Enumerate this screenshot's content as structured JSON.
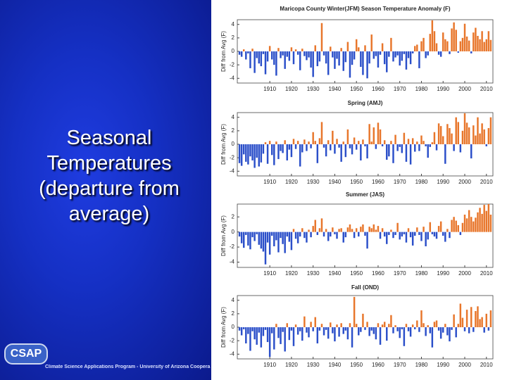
{
  "slide": {
    "title_lines": [
      "Seasonal",
      "Temperatures",
      "(departure from",
      "average)"
    ],
    "logo": "CSAP",
    "footer": "Climate Science Applications Program - University of Arizona Coopera"
  },
  "chart_data": [
    {
      "type": "bar",
      "title": "Maricopa County Winter(JFM) Season Temperature Anomaly (F)",
      "ylabel": "Diff from Avg (F)",
      "color_positive": "#e8762b",
      "color_negative": "#2b4fc9",
      "xlim": [
        1895,
        2013
      ],
      "xticks": [
        1910,
        1920,
        1930,
        1940,
        1950,
        1960,
        1970,
        1980,
        1990,
        2000,
        2010
      ],
      "ylim": [
        -4.7,
        4.7
      ],
      "yticks": [
        -4,
        -2,
        0,
        2,
        4
      ],
      "x": [
        1896,
        1897,
        1898,
        1899,
        1900,
        1901,
        1902,
        1903,
        1904,
        1905,
        1906,
        1907,
        1908,
        1909,
        1910,
        1911,
        1912,
        1913,
        1914,
        1915,
        1916,
        1917,
        1918,
        1919,
        1920,
        1921,
        1922,
        1923,
        1924,
        1925,
        1926,
        1927,
        1928,
        1929,
        1930,
        1931,
        1932,
        1933,
        1934,
        1935,
        1936,
        1937,
        1938,
        1939,
        1940,
        1941,
        1942,
        1943,
        1944,
        1945,
        1946,
        1947,
        1948,
        1949,
        1950,
        1951,
        1952,
        1953,
        1954,
        1955,
        1956,
        1957,
        1958,
        1959,
        1960,
        1961,
        1962,
        1963,
        1964,
        1965,
        1966,
        1967,
        1968,
        1969,
        1970,
        1971,
        1972,
        1973,
        1974,
        1975,
        1976,
        1977,
        1978,
        1979,
        1980,
        1981,
        1982,
        1983,
        1984,
        1985,
        1986,
        1987,
        1988,
        1989,
        1990,
        1991,
        1992,
        1993,
        1994,
        1995,
        1996,
        1997,
        1998,
        1999,
        2000,
        2001,
        2002,
        2003,
        2004,
        2005,
        2006,
        2007,
        2008,
        2009,
        2010,
        2011,
        2012
      ],
      "values": [
        -0.5,
        -0.8,
        0.3,
        -1.2,
        -0.3,
        -2.5,
        0.4,
        -3.2,
        -1.0,
        -1.8,
        -2.2,
        -0.4,
        -3.4,
        -1.5,
        0.8,
        -1.2,
        -2.0,
        -3.6,
        0.5,
        -1.0,
        -0.6,
        -2.6,
        -0.8,
        -1.4,
        0.6,
        -1.9,
        0.3,
        -0.5,
        -2.8,
        0.4,
        -0.7,
        -1.3,
        -0.9,
        -2.4,
        -3.8,
        0.9,
        -2.2,
        -1.5,
        4.2,
        -0.6,
        -1.8,
        -3.5,
        0.7,
        -0.9,
        -2.6,
        -1.1,
        -2.1,
        0.5,
        -2.9,
        -1.6,
        1.4,
        -3.9,
        -2.0,
        -1.2,
        1.8,
        0.6,
        -2.3,
        -3.5,
        0.9,
        -4.0,
        -1.8,
        2.5,
        -1.1,
        -0.7,
        -2.4,
        -0.5,
        1.2,
        -1.9,
        -3.1,
        -0.8,
        2.0,
        -1.5,
        -0.9,
        -0.6,
        -2.1,
        -1.4,
        -0.4,
        -2.7,
        -1.0,
        -1.9,
        -0.3,
        0.8,
        1.0,
        -2.5,
        1.5,
        2.0,
        -1.0,
        -0.6,
        2.6,
        4.6,
        3.0,
        1.2,
        -0.5,
        -0.8,
        2.8,
        1.8,
        1.5,
        -0.4,
        3.4,
        4.3,
        3.2,
        -0.2,
        1.5,
        2.0,
        4.1,
        2.2,
        1.6,
        -0.3,
        2.8,
        3.5,
        2.3,
        1.8,
        3.0,
        1.4,
        1.8,
        3.0,
        1.7
      ]
    },
    {
      "type": "bar",
      "title": "Spring (AMJ)",
      "ylabel": "Diff from Avg (F)",
      "color_positive": "#e8762b",
      "color_negative": "#2b4fc9",
      "xlim": [
        1895,
        2013
      ],
      "xticks": [
        1910,
        1920,
        1930,
        1940,
        1950,
        1960,
        1970,
        1980,
        1990,
        2000,
        2010
      ],
      "ylim": [
        -4.7,
        4.7
      ],
      "yticks": [
        -4,
        -2,
        0,
        2,
        4
      ],
      "x": [
        1896,
        1897,
        1898,
        1899,
        1900,
        1901,
        1902,
        1903,
        1904,
        1905,
        1906,
        1907,
        1908,
        1909,
        1910,
        1911,
        1912,
        1913,
        1914,
        1915,
        1916,
        1917,
        1918,
        1919,
        1920,
        1921,
        1922,
        1923,
        1924,
        1925,
        1926,
        1927,
        1928,
        1929,
        1930,
        1931,
        1932,
        1933,
        1934,
        1935,
        1936,
        1937,
        1938,
        1939,
        1940,
        1941,
        1942,
        1943,
        1944,
        1945,
        1946,
        1947,
        1948,
        1949,
        1950,
        1951,
        1952,
        1953,
        1954,
        1955,
        1956,
        1957,
        1958,
        1959,
        1960,
        1961,
        1962,
        1963,
        1964,
        1965,
        1966,
        1967,
        1968,
        1969,
        1970,
        1971,
        1972,
        1973,
        1974,
        1975,
        1976,
        1977,
        1978,
        1979,
        1980,
        1981,
        1982,
        1983,
        1984,
        1985,
        1986,
        1987,
        1988,
        1989,
        1990,
        1991,
        1992,
        1993,
        1994,
        1995,
        1996,
        1997,
        1998,
        1999,
        2000,
        2001,
        2002,
        2003,
        2004,
        2005,
        2006,
        2007,
        2008,
        2009,
        2010,
        2011,
        2012
      ],
      "values": [
        -2.8,
        -3.2,
        -1.5,
        -2.6,
        -3.0,
        -1.8,
        -2.4,
        -3.5,
        -2.0,
        -3.3,
        -2.7,
        -1.4,
        0.3,
        -2.9,
        0.5,
        -1.6,
        -3.1,
        0.4,
        -2.2,
        -1.0,
        -1.3,
        0.6,
        -2.4,
        -0.8,
        -1.9,
        0.8,
        -0.7,
        0.5,
        -3.3,
        -1.2,
        0.7,
        -1.0,
        0.4,
        -0.6,
        1.8,
        0.5,
        -2.8,
        0.9,
        3.3,
        -0.5,
        -1.8,
        0.6,
        -0.9,
        2.0,
        -1.4,
        0.8,
        -0.5,
        -2.6,
        0.4,
        -1.9,
        2.2,
        -0.6,
        -1.5,
        1.0,
        -0.8,
        0.5,
        -2.4,
        0.7,
        -0.3,
        -2.1,
        3.0,
        0.4,
        2.5,
        -0.7,
        3.2,
        2.2,
        -0.3,
        0.6,
        -2.3,
        -1.8,
        0.5,
        -2.8,
        1.4,
        -1.0,
        -0.4,
        -1.3,
        1.7,
        -2.6,
        0.8,
        -3.0,
        0.9,
        -1.1,
        0.4,
        -1.0,
        1.3,
        0.5,
        -0.3,
        -2.0,
        -0.4,
        0.3,
        1.8,
        -0.9,
        3.1,
        2.7,
        1.2,
        -2.9,
        3.0,
        2.4,
        1.6,
        -1.0,
        4.0,
        3.3,
        -1.2,
        2.0,
        4.6,
        3.2,
        2.5,
        -2.1,
        2.8,
        1.3,
        4.0,
        1.6,
        3.1,
        2.2,
        -0.3,
        2.4,
        4.0
      ]
    },
    {
      "type": "bar",
      "title": "Summer (JAS)",
      "ylabel": "Diff from Avg (F)",
      "color_positive": "#e8762b",
      "color_negative": "#2b4fc9",
      "xlim": [
        1895,
        2013
      ],
      "xticks": [
        1910,
        1920,
        1930,
        1940,
        1950,
        1960,
        1970,
        1980,
        1990,
        2000,
        2010
      ],
      "ylim": [
        -4.7,
        3.7
      ],
      "yticks": [
        -4,
        -2,
        0,
        2
      ],
      "x": [
        1896,
        1897,
        1898,
        1899,
        1900,
        1901,
        1902,
        1903,
        1904,
        1905,
        1906,
        1907,
        1908,
        1909,
        1910,
        1911,
        1912,
        1913,
        1914,
        1915,
        1916,
        1917,
        1918,
        1919,
        1920,
        1921,
        1922,
        1923,
        1924,
        1925,
        1926,
        1927,
        1928,
        1929,
        1930,
        1931,
        1932,
        1933,
        1934,
        1935,
        1936,
        1937,
        1938,
        1939,
        1940,
        1941,
        1942,
        1943,
        1944,
        1945,
        1946,
        1947,
        1948,
        1949,
        1950,
        1951,
        1952,
        1953,
        1954,
        1955,
        1956,
        1957,
        1958,
        1959,
        1960,
        1961,
        1962,
        1963,
        1964,
        1965,
        1966,
        1967,
        1968,
        1969,
        1970,
        1971,
        1972,
        1973,
        1974,
        1975,
        1976,
        1977,
        1978,
        1979,
        1980,
        1981,
        1982,
        1983,
        1984,
        1985,
        1986,
        1987,
        1988,
        1989,
        1990,
        1991,
        1992,
        1993,
        1994,
        1995,
        1996,
        1997,
        1998,
        1999,
        2000,
        2001,
        2002,
        2003,
        2004,
        2005,
        2006,
        2007,
        2008,
        2009,
        2010,
        2011,
        2012
      ],
      "values": [
        -0.6,
        -1.5,
        -2.1,
        -0.4,
        -1.8,
        -2.3,
        -0.7,
        -1.2,
        -0.3,
        -1.7,
        -2.2,
        -2.6,
        -4.3,
        -1.4,
        -3.0,
        -0.5,
        -1.9,
        -1.1,
        -2.7,
        -0.8,
        -1.6,
        -2.8,
        -0.6,
        -1.3,
        -2.4,
        0.4,
        -0.9,
        -1.5,
        -0.6,
        0.5,
        -0.8,
        -1.4,
        0.3,
        -0.7,
        0.8,
        1.6,
        -0.4,
        0.5,
        1.8,
        -0.6,
        0.4,
        -1.2,
        -0.6,
        0.6,
        -0.3,
        -0.9,
        0.4,
        0.5,
        -1.4,
        -0.7,
        0.6,
        1.0,
        0.4,
        -0.8,
        0.5,
        -0.6,
        0.7,
        1.0,
        -0.5,
        -2.2,
        0.7,
        0.5,
        1.0,
        0.3,
        0.8,
        -0.9,
        0.5,
        -0.6,
        -1.6,
        -0.4,
        0.3,
        -0.8,
        -0.4,
        1.2,
        -1.0,
        -0.6,
        -0.3,
        -1.4,
        0.5,
        -0.7,
        -1.8,
        -0.5,
        0.6,
        -0.4,
        -1.2,
        0.7,
        -1.9,
        -1.0,
        1.3,
        -0.3,
        -0.6,
        -0.9,
        0.8,
        1.4,
        -0.5,
        -1.3,
        0.4,
        -0.8,
        1.6,
        2.0,
        1.5,
        0.9,
        -0.4,
        1.2,
        2.3,
        1.8,
        2.9,
        2.0,
        1.4,
        1.9,
        2.6,
        3.2,
        2.4,
        3.6,
        2.8,
        3.7,
        2.3
      ]
    },
    {
      "type": "bar",
      "title": "Fall (OND)",
      "ylabel": "Diff from Avg (F)",
      "color_positive": "#e8762b",
      "color_negative": "#2b4fc9",
      "xlim": [
        1895,
        2013
      ],
      "xticks": [
        1910,
        1920,
        1930,
        1940,
        1950,
        1960,
        1970,
        1980,
        1990,
        2000,
        2010
      ],
      "ylim": [
        -4.7,
        4.7
      ],
      "yticks": [
        -4,
        -2,
        0,
        2,
        4
      ],
      "x": [
        1896,
        1897,
        1898,
        1899,
        1900,
        1901,
        1902,
        1903,
        1904,
        1905,
        1906,
        1907,
        1908,
        1909,
        1910,
        1911,
        1912,
        1913,
        1914,
        1915,
        1916,
        1917,
        1918,
        1919,
        1920,
        1921,
        1922,
        1923,
        1924,
        1925,
        1926,
        1927,
        1928,
        1929,
        1930,
        1931,
        1932,
        1933,
        1934,
        1935,
        1936,
        1937,
        1938,
        1939,
        1940,
        1941,
        1942,
        1943,
        1944,
        1945,
        1946,
        1947,
        1948,
        1949,
        1950,
        1951,
        1952,
        1953,
        1954,
        1955,
        1956,
        1957,
        1958,
        1959,
        1960,
        1961,
        1962,
        1963,
        1964,
        1965,
        1966,
        1967,
        1968,
        1969,
        1970,
        1971,
        1972,
        1973,
        1974,
        1975,
        1976,
        1977,
        1978,
        1979,
        1980,
        1981,
        1982,
        1983,
        1984,
        1985,
        1986,
        1987,
        1988,
        1989,
        1990,
        1991,
        1992,
        1993,
        1994,
        1995,
        1996,
        1997,
        1998,
        1999,
        2000,
        2001,
        2002,
        2003,
        2004,
        2005,
        2006,
        2007,
        2008,
        2009,
        2010,
        2011,
        2012
      ],
      "values": [
        -0.5,
        -1.2,
        -0.3,
        -2.4,
        -1.0,
        -3.5,
        -0.6,
        -1.8,
        -2.6,
        -0.8,
        -3.0,
        -1.3,
        -0.4,
        -2.2,
        -4.4,
        -0.9,
        -3.3,
        0.5,
        -1.6,
        -2.5,
        -0.7,
        -3.6,
        0.6,
        -1.9,
        -0.5,
        -2.8,
        0.4,
        -1.1,
        -0.6,
        -2.0,
        1.6,
        -0.8,
        -1.5,
        0.8,
        -0.6,
        1.5,
        -2.4,
        -0.5,
        0.5,
        -1.2,
        -0.4,
        -1.7,
        0.7,
        -0.9,
        -2.1,
        0.4,
        -1.4,
        0.6,
        -1.0,
        -0.5,
        -1.8,
        0.6,
        -3.0,
        4.5,
        0.5,
        -1.2,
        -0.7,
        2.0,
        -0.4,
        0.8,
        -1.3,
        -0.5,
        -1.0,
        -1.8,
        0.6,
        -2.6,
        0.4,
        0.8,
        -2.0,
        0.5,
        1.8,
        -0.9,
        0.3,
        -0.6,
        -1.6,
        -0.3,
        -2.8,
        0.5,
        -0.6,
        -1.4,
        0.4,
        -0.3,
        1.0,
        -0.7,
        2.5,
        0.6,
        -1.3,
        0.3,
        -0.9,
        -3.0,
        0.8,
        1.0,
        -0.5,
        -1.7,
        -0.8,
        0.5,
        -1.2,
        -2.1,
        -0.4,
        1.9,
        -1.5,
        0.5,
        3.5,
        1.4,
        -0.6,
        2.6,
        -0.9,
        3.0,
        -0.7,
        2.4,
        3.1,
        1.2,
        1.5,
        -0.8,
        2.0,
        -0.5,
        2.5
      ]
    }
  ]
}
